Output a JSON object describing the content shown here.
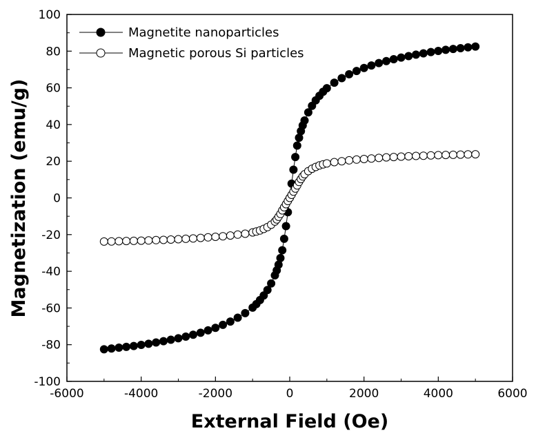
{
  "chart_data": {
    "type": "scatter",
    "xlabel": "External Field (Oe)",
    "ylabel": "Magnetization (emu/g)",
    "xlim": [
      -6000,
      6000
    ],
    "ylim": [
      -100,
      100
    ],
    "x_ticks": [
      -6000,
      -4000,
      -2000,
      0,
      2000,
      4000,
      6000
    ],
    "y_ticks": [
      -100,
      -80,
      -60,
      -40,
      -20,
      0,
      20,
      40,
      60,
      80,
      100
    ],
    "grid": false,
    "legend_position": "top-left",
    "series": [
      {
        "name": "Magnetite nanoparticles",
        "marker": "filled-circle",
        "color": "#000000",
        "connect": true,
        "x": [
          -5000,
          -4800,
          -4600,
          -4400,
          -4200,
          -4000,
          -3800,
          -3600,
          -3400,
          -3200,
          -3000,
          -2800,
          -2600,
          -2400,
          -2200,
          -2000,
          -1800,
          -1600,
          -1400,
          -1200,
          -1000,
          -900,
          -800,
          -700,
          -600,
          -500,
          -400,
          -350,
          -300,
          -250,
          -200,
          -150,
          -100,
          -50,
          0,
          50,
          100,
          150,
          200,
          250,
          300,
          350,
          400,
          500,
          600,
          700,
          800,
          900,
          1000,
          1200,
          1400,
          1600,
          1800,
          2000,
          2200,
          2400,
          2600,
          2800,
          3000,
          3200,
          3400,
          3600,
          3800,
          4000,
          4200,
          4400,
          4600,
          4800,
          5000
        ],
        "y": [
          -82.5,
          -82.1,
          -81.6,
          -81.2,
          -80.7,
          -80.1,
          -79.5,
          -78.8,
          -78.1,
          -77.3,
          -76.5,
          -75.6,
          -74.6,
          -73.5,
          -72.2,
          -70.8,
          -69.2,
          -67.4,
          -65.3,
          -62.8,
          -59.8,
          -57.9,
          -55.7,
          -53.2,
          -50.2,
          -46.6,
          -42.2,
          -39.5,
          -36.4,
          -32.8,
          -28.5,
          -22.3,
          -15.4,
          -7.8,
          0,
          7.8,
          15.4,
          22.3,
          28.5,
          32.8,
          36.4,
          39.5,
          42.2,
          46.6,
          50.2,
          53.2,
          55.7,
          57.9,
          59.8,
          62.8,
          65.3,
          67.4,
          69.2,
          70.8,
          72.2,
          73.5,
          74.6,
          75.6,
          76.5,
          77.3,
          78.1,
          78.8,
          79.5,
          80.1,
          80.7,
          81.2,
          81.6,
          82.1,
          82.5
        ]
      },
      {
        "name": "Magnetic porous Si particles",
        "marker": "open-circle",
        "color": "#000000",
        "connect": true,
        "x": [
          -5000,
          -4800,
          -4600,
          -4400,
          -4200,
          -4000,
          -3800,
          -3600,
          -3400,
          -3200,
          -3000,
          -2800,
          -2600,
          -2400,
          -2200,
          -2000,
          -1800,
          -1600,
          -1400,
          -1200,
          -1000,
          -900,
          -800,
          -700,
          -600,
          -500,
          -400,
          -350,
          -300,
          -250,
          -200,
          -150,
          -100,
          -50,
          0,
          50,
          100,
          150,
          200,
          250,
          300,
          350,
          400,
          500,
          600,
          700,
          800,
          900,
          1000,
          1200,
          1400,
          1600,
          1800,
          2000,
          2200,
          2400,
          2600,
          2800,
          3000,
          3200,
          3400,
          3600,
          3800,
          4000,
          4200,
          4400,
          4600,
          4800,
          5000
        ],
        "y": [
          -23.8,
          -23.7,
          -23.6,
          -23.5,
          -23.4,
          -23.3,
          -23.2,
          -23.0,
          -22.9,
          -22.7,
          -22.5,
          -22.3,
          -22.1,
          -21.8,
          -21.5,
          -21.2,
          -20.9,
          -20.5,
          -20.0,
          -19.5,
          -18.8,
          -18.3,
          -17.7,
          -16.9,
          -15.9,
          -14.6,
          -12.9,
          -11.7,
          -10.3,
          -8.7,
          -6.8,
          -5.1,
          -3.4,
          -1.7,
          0,
          1.7,
          3.4,
          5.1,
          6.8,
          8.7,
          10.3,
          11.7,
          12.9,
          14.6,
          15.9,
          16.9,
          17.7,
          18.3,
          18.8,
          19.5,
          20.0,
          20.5,
          20.9,
          21.2,
          21.5,
          21.8,
          22.1,
          22.3,
          22.5,
          22.7,
          22.9,
          23.0,
          23.2,
          23.3,
          23.4,
          23.5,
          23.6,
          23.7,
          23.8
        ]
      }
    ]
  }
}
